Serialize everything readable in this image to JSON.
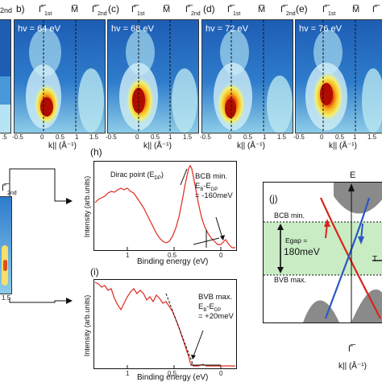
{
  "top_panels": [
    {
      "letter": "",
      "hv": "",
      "sym": [
        "",
        "Γ̅",
        ""
      ],
      "sub_2nd": "2nd"
    },
    {
      "letter": "b)",
      "hv": "hv = 64 eV",
      "sym": [
        "Γ̅",
        "M̅",
        "Γ̅"
      ],
      "subs": [
        "1st",
        "",
        "2nd"
      ]
    },
    {
      "letter": "(c)",
      "hv": "hv = 68 eV",
      "sym": [
        "Γ̅",
        "M̅",
        "Γ̅"
      ],
      "subs": [
        "1st",
        "",
        "2nd"
      ]
    },
    {
      "letter": "(d)",
      "hv": "hv = 72 eV",
      "sym": [
        "Γ̅",
        "M̅",
        "Γ̅"
      ],
      "subs": [
        "1st",
        "",
        "2nd"
      ]
    },
    {
      "letter": "(e)",
      "hv": "hv = 76 eV",
      "sym": [
        "Γ̅",
        "M̅",
        "Γ̅"
      ],
      "subs": [
        "1st",
        "",
        "2nd"
      ]
    }
  ],
  "top_ticks": [
    "-0.5",
    "0",
    "0.5",
    "1",
    "1.5"
  ],
  "kaxis": "k|| (Å⁻¹)",
  "panel_h": {
    "letter": "(h)",
    "ylabel": "Intensity (arb.units)",
    "xlabel": "Binding energy (eV)",
    "xticks": [
      "1",
      "0.5",
      "0"
    ],
    "dirac": "Dirac point (E",
    "dirac_sub": "DP",
    "bcb1": "BCB min.",
    "bcb2": "E",
    "bcb2b": "B",
    "bcb2c": "-E",
    "bcb2d": "DP",
    "bcb3": "= -160meV"
  },
  "panel_i": {
    "letter": "(i)",
    "ylabel": "Intensity (arb.units)",
    "xlabel": "Binding energy (eV)",
    "xticks": [
      "1",
      "0.5",
      "0"
    ],
    "bvb1": "BVB max.",
    "bvb2": "E",
    "bvb2b": "B",
    "bvb2c": "-E",
    "bvb2d": "DP",
    "bvb3": "= +20meV"
  },
  "panel_j": {
    "letter": "(j)",
    "e_label": "E",
    "bcb": "BCB min.",
    "egap1": "Egap =",
    "egap2": "180meV",
    "bvb": "BVB max.",
    "gamma": "Γ̅",
    "kaxis": "k|| (Å⁻¹)",
    "t_label": "T"
  },
  "left_small": {
    "sym": "Γ̅",
    "sub": "2nd",
    "tick": "1.5"
  },
  "colors": {
    "arpes_bg": "#1d5db4",
    "curve": "#e0281f",
    "band_red": "#d8241c",
    "band_blue": "#2c56c4",
    "gap": "#c9ecc4"
  }
}
